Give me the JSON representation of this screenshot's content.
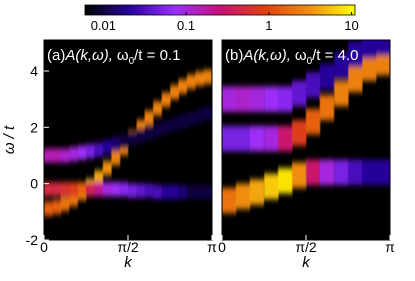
{
  "colorbar": {
    "clim": [
      0.006,
      11
    ],
    "ticks": [
      0.01,
      0.1,
      1,
      10
    ],
    "colormap": [
      "#000000",
      "#2a00a0",
      "#9b30ff",
      "#c8107a",
      "#e04010",
      "#f09010",
      "#ffff00"
    ]
  },
  "chart_data": [
    {
      "type": "heatmap",
      "ylabel": "ω / t",
      "xlabel": "k",
      "annotation": {
        "panel": "(a)",
        "func": "A(k,ω),",
        "param": "ω",
        "sub": "0",
        "rest": "/t = 0.1"
      },
      "xlim": [
        0,
        3.1416
      ],
      "ylim": [
        -2,
        5.1
      ],
      "xticks": [
        0,
        {
          "value": 1.5708,
          "label": "π/2"
        },
        {
          "value": 3.1416,
          "label": "π"
        }
      ],
      "yticks": [
        -2,
        0,
        2,
        4
      ],
      "peak_width": 0.5,
      "k": [
        0.08,
        0.24,
        0.39,
        0.55,
        0.71,
        0.86,
        1.02,
        1.18,
        1.34,
        1.49,
        1.65,
        1.81,
        1.96,
        2.12,
        2.28,
        2.44,
        2.59,
        2.75,
        2.91,
        3.06
      ],
      "series": [
        {
          "omega": [
            -0.89,
            -0.83,
            -0.72,
            -0.55,
            -0.33,
            -0.08,
            0.22,
            0.55,
            0.91,
            1.26,
            1.64,
            2.01,
            2.34,
            2.67,
            2.98,
            3.25,
            3.45,
            3.62,
            3.73,
            3.79
          ],
          "values": [
            1.5,
            1.5,
            2,
            2,
            3,
            5,
            4,
            3,
            2.5,
            2.5,
            2.5,
            2.5,
            2.5,
            2.5,
            2.5,
            2.5,
            2.5,
            2.5,
            2.5,
            2.5
          ]
        },
        {
          "omega": [
            -0.2,
            -0.2,
            -0.2,
            -0.2,
            -0.2,
            -0.2,
            -0.2,
            -0.2,
            -0.2,
            -0.2,
            -0.25,
            -0.25,
            -0.25,
            -0.3,
            -0.3,
            -0.3,
            -0.3,
            -0.3,
            -0.3,
            -0.3
          ],
          "values": [
            0.5,
            0.5,
            0.6,
            0.8,
            1.5,
            0.4,
            0.2,
            0.1,
            0.08,
            0.06,
            0.05,
            0.04,
            0.03,
            0.03,
            0.02,
            0.02,
            0.015,
            0.01,
            0.01,
            0.01
          ]
        },
        {
          "omega": [
            1.0,
            1.0,
            1.0,
            1.05,
            1.1,
            1.15,
            1.2,
            1.3,
            1.4,
            1.5,
            1.6,
            1.7,
            1.8,
            1.9,
            2.0,
            2.1,
            2.2,
            2.3,
            2.4,
            2.5
          ],
          "values": [
            0.15,
            0.15,
            0.12,
            0.1,
            0.08,
            0.05,
            0.03,
            0.02,
            0.015,
            0.01,
            0.01,
            0.01,
            0.01,
            0.01,
            0.01,
            0.01,
            0.01,
            0.01,
            0.01,
            0.01
          ]
        }
      ]
    },
    {
      "type": "heatmap",
      "xlabel": "k",
      "annotation": {
        "panel": "(b)",
        "func": "A(k,ω),",
        "param": "ω",
        "sub": "0",
        "rest": "/t = 4.0"
      },
      "xlim": [
        0,
        3.1416
      ],
      "ylim": [
        -2,
        5.1
      ],
      "xticks": [
        0,
        {
          "value": 1.5708,
          "label": "π/2"
        },
        {
          "value": 3.1416,
          "label": "π"
        }
      ],
      "peak_width": 0.9,
      "k": [
        0.13,
        0.39,
        0.65,
        0.92,
        1.18,
        1.44,
        1.7,
        1.96,
        2.23,
        2.49,
        2.75,
        3.01
      ],
      "series": [
        {
          "omega": [
            -0.6,
            -0.45,
            -0.3,
            -0.1,
            0.1,
            0.3,
            0.4,
            0.4,
            0.4,
            0.4,
            0.4,
            0.4
          ],
          "values": [
            2,
            3,
            4,
            6,
            8,
            3,
            0.3,
            0.1,
            0.05,
            0.03,
            0.02,
            0.02
          ]
        },
        {
          "omega": [
            1.6,
            1.6,
            1.6,
            1.6,
            1.6,
            1.8,
            2.2,
            2.7,
            3.2,
            3.7,
            4.1,
            4.3
          ],
          "values": [
            0.05,
            0.05,
            0.08,
            0.1,
            0.3,
            0.8,
            1.5,
            2,
            2.5,
            2.5,
            2.5,
            2.5
          ]
        },
        {
          "omega": [
            3.0,
            3.0,
            3.0,
            3.0,
            3.0,
            3.2,
            3.5,
            3.8,
            4.2,
            4.6,
            4.9,
            5.0
          ],
          "values": [
            0.1,
            0.12,
            0.1,
            0.08,
            0.06,
            0.04,
            0.03,
            0.02,
            0.02,
            0.02,
            0.02,
            0.02
          ]
        }
      ]
    }
  ]
}
